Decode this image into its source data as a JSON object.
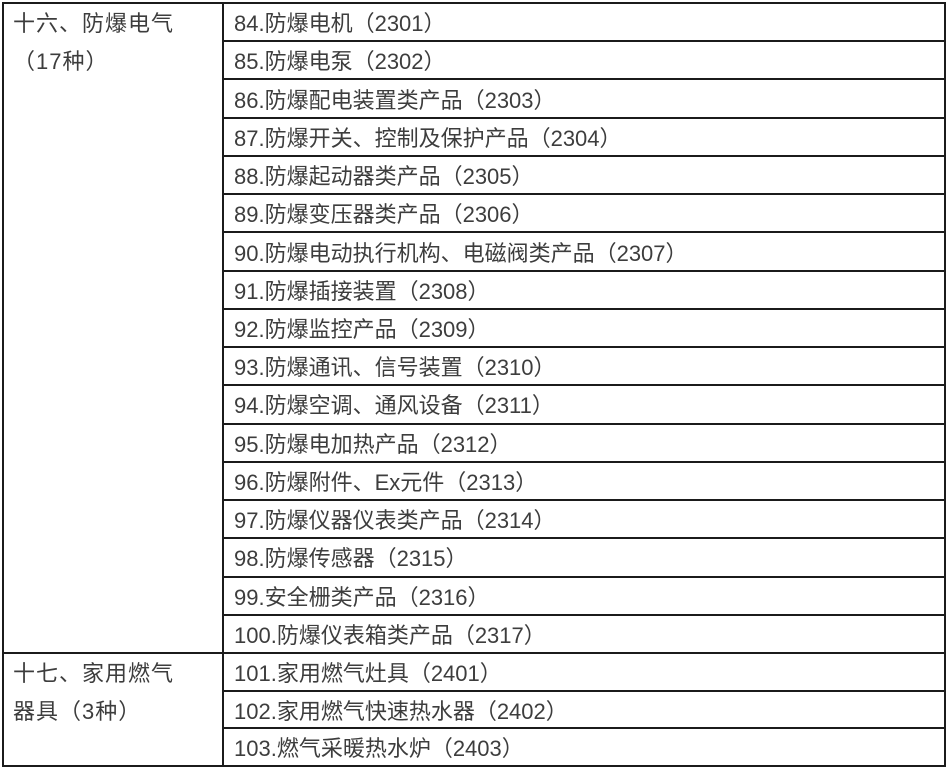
{
  "table": {
    "text_color": "#3d3d3d",
    "border_color": "#1b1b1b",
    "sections": [
      {
        "category": "十六、防爆电气\n（17种）",
        "category_name": "防爆电气",
        "category_count": "17种",
        "items": [
          "84.防爆电机（2301）",
          "85.防爆电泵（2302）",
          "86.防爆配电装置类产品（2303）",
          "87.防爆开关、控制及保护产品（2304）",
          "88.防爆起动器类产品（2305）",
          "89.防爆变压器类产品（2306）",
          "90.防爆电动执行机构、电磁阀类产品（2307）",
          "91.防爆插接装置（2308）",
          "92.防爆监控产品（2309）",
          "93.防爆通讯、信号装置（2310）",
          "94.防爆空调、通风设备（2311）",
          "95.防爆电加热产品（2312）",
          "96.防爆附件、Ex元件（2313）",
          "97.防爆仪器仪表类产品（2314）",
          "98.防爆传感器（2315）",
          "99.安全栅类产品（2316）",
          "100.防爆仪表箱类产品（2317）"
        ]
      },
      {
        "category": "十七、家用燃气\n器具（3种）",
        "category_name": "家用燃气器具",
        "category_count": "3种",
        "items": [
          "101.家用燃气灶具（2401）",
          "102.家用燃气快速热水器（2402）",
          "103.燃气采暖热水炉（2403）"
        ]
      }
    ]
  }
}
